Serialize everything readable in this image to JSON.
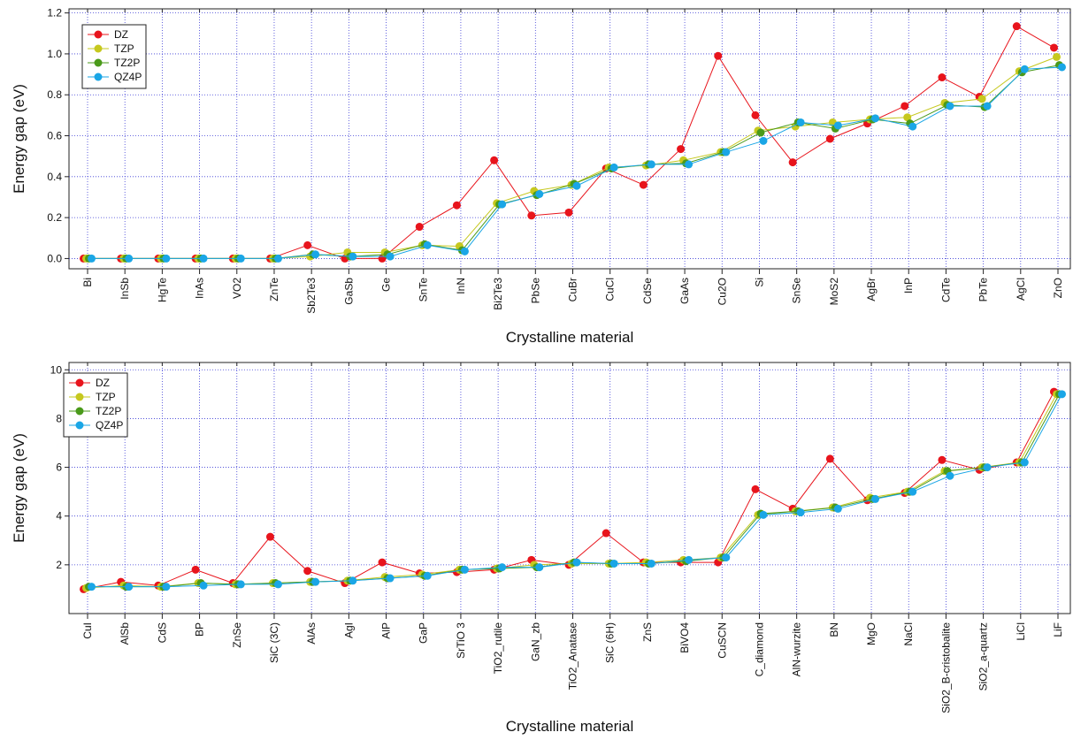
{
  "chart_data": [
    {
      "type": "line",
      "xlabel": "Crystalline material",
      "ylabel": "Energy gap (eV)",
      "ylim": [
        -0.05,
        1.22
      ],
      "yticks": [
        "0.0",
        "0.2",
        "0.4",
        "0.6",
        "0.8",
        "1.0",
        "1.2"
      ],
      "ytick_values": [
        0,
        0.2,
        0.4,
        0.6,
        0.8,
        1.0,
        1.2
      ],
      "grid": true,
      "legend_position": "top-left",
      "categories": [
        "Bi",
        "InSb",
        "HgTe",
        "InAs",
        "VO2",
        "ZnTe",
        "Sb2Te3",
        "GaSb",
        "Ge",
        "SnTe",
        "InN",
        "Bi2Te3",
        "PbSe",
        "CuBr",
        "CuCl",
        "CdSe",
        "GaAs",
        "Cu2O",
        "Si",
        "SnSe",
        "MoS2",
        "AgBr",
        "InP",
        "CdTe",
        "PbTe",
        "AgCl",
        "ZnO"
      ],
      "series": [
        {
          "name": "DZ",
          "color": "#e8141c",
          "values": [
            0,
            0,
            0,
            0,
            0,
            0,
            0.065,
            0,
            0,
            0.155,
            0.26,
            0.48,
            0.21,
            0.225,
            0.44,
            0.36,
            0.535,
            0.99,
            0.7,
            0.47,
            0.585,
            0.66,
            0.745,
            0.885,
            0.79,
            1.135,
            1.03
          ]
        },
        {
          "name": "TZP",
          "color": "#c6c81e",
          "values": [
            0,
            0,
            0,
            0,
            0,
            0,
            0.01,
            0.03,
            0.03,
            0.065,
            0.06,
            0.27,
            0.33,
            0.36,
            0.445,
            0.455,
            0.48,
            0.52,
            0.625,
            0.645,
            0.665,
            0.68,
            0.69,
            0.76,
            0.78,
            0.915,
            0.985
          ]
        },
        {
          "name": "TZ2P",
          "color": "#4a9a1a",
          "values": [
            0,
            0,
            0,
            0,
            0,
            0,
            0.02,
            0.01,
            0.02,
            0.07,
            0.04,
            0.265,
            0.31,
            0.365,
            0.44,
            0.46,
            0.465,
            0.52,
            0.615,
            0.665,
            0.635,
            0.68,
            0.66,
            0.75,
            0.74,
            0.91,
            0.945
          ]
        },
        {
          "name": "QZ4P",
          "color": "#1aa6e6",
          "values": [
            0,
            0,
            0,
            0,
            0,
            0,
            0.02,
            0.01,
            0.01,
            0.065,
            0.035,
            0.265,
            0.315,
            0.355,
            0.445,
            0.46,
            0.46,
            0.52,
            0.575,
            0.665,
            0.65,
            0.685,
            0.645,
            0.745,
            0.745,
            0.925,
            0.935
          ]
        }
      ]
    },
    {
      "type": "line",
      "xlabel": "Crystalline material",
      "ylabel": "Energy gap (eV)",
      "ylim": [
        0,
        10.3
      ],
      "yticks": [
        "2",
        "4",
        "6",
        "8",
        "10"
      ],
      "ytick_values": [
        2,
        4,
        6,
        8,
        10
      ],
      "grid": true,
      "legend_position": "top-left",
      "categories": [
        "CuI",
        "AlSb",
        "CdS",
        "BP",
        "ZnSe",
        "SiC (3C)",
        "AlAs",
        "AgI",
        "AlP",
        "GaP",
        "SrTiO 3",
        "TiO2_rutile",
        "GaN_zb",
        "TiO2_Anatase",
        "SiC (6H)",
        "ZnS",
        "BiVO4",
        "CuSCN",
        "C_diamond",
        "AlN-wurzite",
        "BN",
        "MgO",
        "NaCl",
        "SiO2_B-cristobalite",
        "SiO2_a-quartz",
        "LiCl",
        "LiF"
      ],
      "series": [
        {
          "name": "DZ",
          "color": "#e8141c",
          "values": [
            1.0,
            1.3,
            1.15,
            1.8,
            1.25,
            3.15,
            1.75,
            1.25,
            2.1,
            1.65,
            1.7,
            1.8,
            2.2,
            2.0,
            3.3,
            2.1,
            2.1,
            2.1,
            5.1,
            4.3,
            6.35,
            4.65,
            4.95,
            6.3,
            5.9,
            6.2,
            9.1
          ]
        },
        {
          "name": "TZP",
          "color": "#c6c81e",
          "values": [
            1.05,
            1.15,
            1.1,
            1.25,
            1.2,
            1.25,
            1.3,
            1.35,
            1.5,
            1.6,
            1.8,
            1.85,
            2.0,
            2.05,
            2.05,
            2.1,
            2.2,
            2.3,
            4.05,
            4.2,
            4.35,
            4.75,
            5.0,
            5.85,
            6.0,
            6.2,
            9.0
          ]
        },
        {
          "name": "TZ2P",
          "color": "#4a9a1a",
          "values": [
            1.1,
            1.1,
            1.1,
            1.25,
            1.2,
            1.25,
            1.3,
            1.35,
            1.45,
            1.55,
            1.8,
            1.85,
            1.9,
            2.1,
            2.05,
            2.05,
            2.15,
            2.3,
            4.1,
            4.2,
            4.35,
            4.7,
            5.0,
            5.85,
            6.0,
            6.2,
            9.0
          ]
        },
        {
          "name": "QZ4P",
          "color": "#1aa6e6",
          "values": [
            1.1,
            1.1,
            1.1,
            1.15,
            1.2,
            1.2,
            1.3,
            1.35,
            1.45,
            1.55,
            1.8,
            1.9,
            1.9,
            2.1,
            2.05,
            2.05,
            2.2,
            2.3,
            4.05,
            4.15,
            4.3,
            4.7,
            5.0,
            5.65,
            6.0,
            6.2,
            9.0
          ]
        }
      ]
    }
  ]
}
